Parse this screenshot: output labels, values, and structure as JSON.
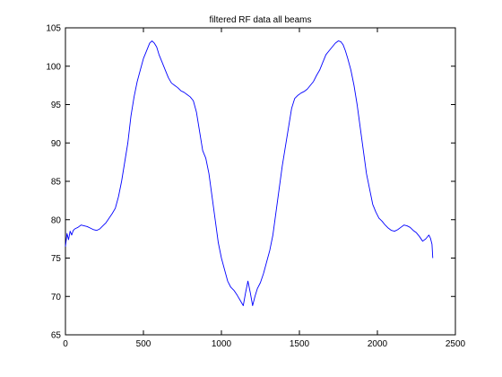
{
  "chart_data": {
    "type": "line",
    "title": "filtered RF data all beams",
    "xlabel": "",
    "ylabel": "",
    "xlim": [
      0,
      2500
    ],
    "ylim": [
      65,
      105
    ],
    "xticks": [
      0,
      500,
      1000,
      1500,
      2000,
      2500
    ],
    "yticks": [
      65,
      70,
      75,
      80,
      85,
      90,
      95,
      100,
      105
    ],
    "grid": false,
    "legend": "none",
    "series": [
      {
        "color": "#0000ff",
        "x": [
          0,
          10,
          20,
          30,
          40,
          50,
          60,
          70,
          80,
          100,
          120,
          140,
          160,
          180,
          200,
          220,
          240,
          260,
          280,
          300,
          320,
          340,
          360,
          380,
          400,
          420,
          440,
          460,
          480,
          500,
          520,
          540,
          555,
          570,
          585,
          600,
          620,
          640,
          660,
          680,
          700,
          720,
          740,
          760,
          780,
          800,
          820,
          840,
          860,
          880,
          900,
          920,
          940,
          960,
          980,
          1000,
          1020,
          1040,
          1060,
          1080,
          1100,
          1120,
          1140,
          1155,
          1170,
          1185,
          1200,
          1215,
          1230,
          1250,
          1270,
          1290,
          1310,
          1330,
          1350,
          1370,
          1390,
          1410,
          1430,
          1450,
          1470,
          1490,
          1510,
          1530,
          1550,
          1570,
          1590,
          1610,
          1630,
          1650,
          1670,
          1690,
          1710,
          1730,
          1750,
          1765,
          1780,
          1795,
          1810,
          1830,
          1850,
          1870,
          1890,
          1910,
          1930,
          1950,
          1970,
          1990,
          2010,
          2030,
          2050,
          2070,
          2090,
          2110,
          2130,
          2150,
          2170,
          2190,
          2210,
          2230,
          2250,
          2270,
          2290,
          2310,
          2330,
          2340,
          2350,
          2355
        ],
        "y": [
          76.5,
          78.2,
          77.4,
          78.5,
          78.0,
          78.6,
          78.8,
          78.9,
          79.0,
          79.3,
          79.2,
          79.1,
          78.9,
          78.7,
          78.6,
          78.8,
          79.2,
          79.6,
          80.2,
          80.8,
          81.5,
          83.0,
          85.0,
          87.5,
          90.0,
          93.5,
          96.0,
          98.0,
          99.5,
          101.0,
          102.0,
          103.0,
          103.3,
          103.0,
          102.5,
          101.5,
          100.5,
          99.5,
          98.5,
          97.8,
          97.5,
          97.2,
          96.8,
          96.6,
          96.3,
          96.0,
          95.5,
          94.0,
          91.5,
          89.0,
          88.0,
          86.0,
          83.0,
          80.0,
          77.0,
          75.0,
          73.5,
          72.0,
          71.2,
          70.8,
          70.2,
          69.5,
          68.8,
          70.5,
          72.0,
          70.5,
          68.8,
          70.0,
          71.0,
          71.8,
          73.0,
          74.5,
          76.0,
          78.0,
          81.0,
          84.0,
          87.0,
          89.5,
          92.0,
          94.5,
          95.8,
          96.2,
          96.5,
          96.7,
          97.0,
          97.5,
          98.0,
          98.8,
          99.5,
          100.5,
          101.5,
          102.0,
          102.5,
          103.0,
          103.3,
          103.2,
          102.8,
          102.0,
          101.0,
          99.5,
          97.5,
          95.0,
          92.0,
          89.0,
          86.0,
          84.0,
          82.0,
          81.0,
          80.2,
          79.8,
          79.3,
          78.9,
          78.6,
          78.5,
          78.7,
          79.0,
          79.3,
          79.2,
          79.0,
          78.6,
          78.3,
          77.8,
          77.2,
          77.5,
          78.0,
          77.6,
          76.8,
          75.0
        ]
      }
    ]
  }
}
